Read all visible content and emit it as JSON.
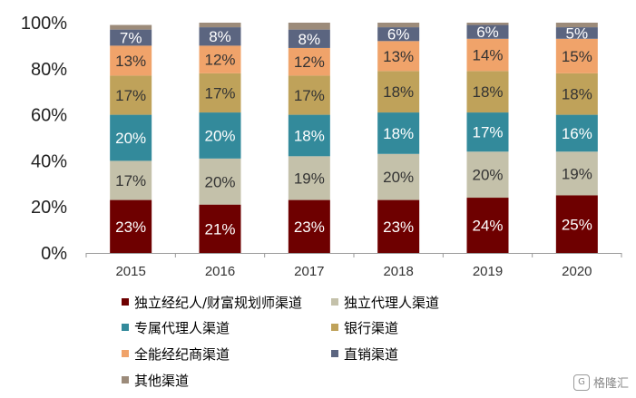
{
  "chart_data": {
    "type": "bar",
    "stacked": true,
    "percent": true,
    "categories": [
      "2015",
      "2016",
      "2017",
      "2018",
      "2019",
      "2020"
    ],
    "ylim": [
      0,
      100
    ],
    "yticks": [
      0,
      20,
      40,
      60,
      80,
      100
    ],
    "ytick_labels": [
      "0%",
      "20%",
      "40%",
      "60%",
      "80%",
      "100%"
    ],
    "series": [
      {
        "name": "独立经纪人/财富规划师渠道",
        "color": "#6e0000",
        "label_color": "#ffffff",
        "values": [
          23,
          21,
          23,
          23,
          24,
          25
        ]
      },
      {
        "name": "独立代理人渠道",
        "color": "#c4c1aa",
        "label_color": "#333333",
        "values": [
          17,
          20,
          19,
          20,
          20,
          19
        ]
      },
      {
        "name": "专属代理人渠道",
        "color": "#338a9b",
        "label_color": "#ffffff",
        "values": [
          20,
          20,
          18,
          18,
          17,
          16
        ]
      },
      {
        "name": "银行渠道",
        "color": "#bfa25a",
        "label_color": "#333333",
        "values": [
          17,
          17,
          17,
          18,
          18,
          18
        ]
      },
      {
        "name": "全能经纪商渠道",
        "color": "#f0a36a",
        "label_color": "#333333",
        "values": [
          13,
          12,
          12,
          13,
          14,
          15
        ]
      },
      {
        "name": "直销渠道",
        "color": "#5b6580",
        "label_color": "#ffffff",
        "values": [
          7,
          8,
          8,
          6,
          6,
          5
        ]
      },
      {
        "name": "其他渠道",
        "color": "#9c8b7a",
        "label_color": "#ffffff",
        "values": [
          2,
          2,
          3,
          2,
          1,
          2
        ]
      }
    ],
    "value_label_suffix": "%",
    "legend_position": "bottom"
  },
  "watermark": {
    "icon_text": "G",
    "text": "格隆汇"
  }
}
